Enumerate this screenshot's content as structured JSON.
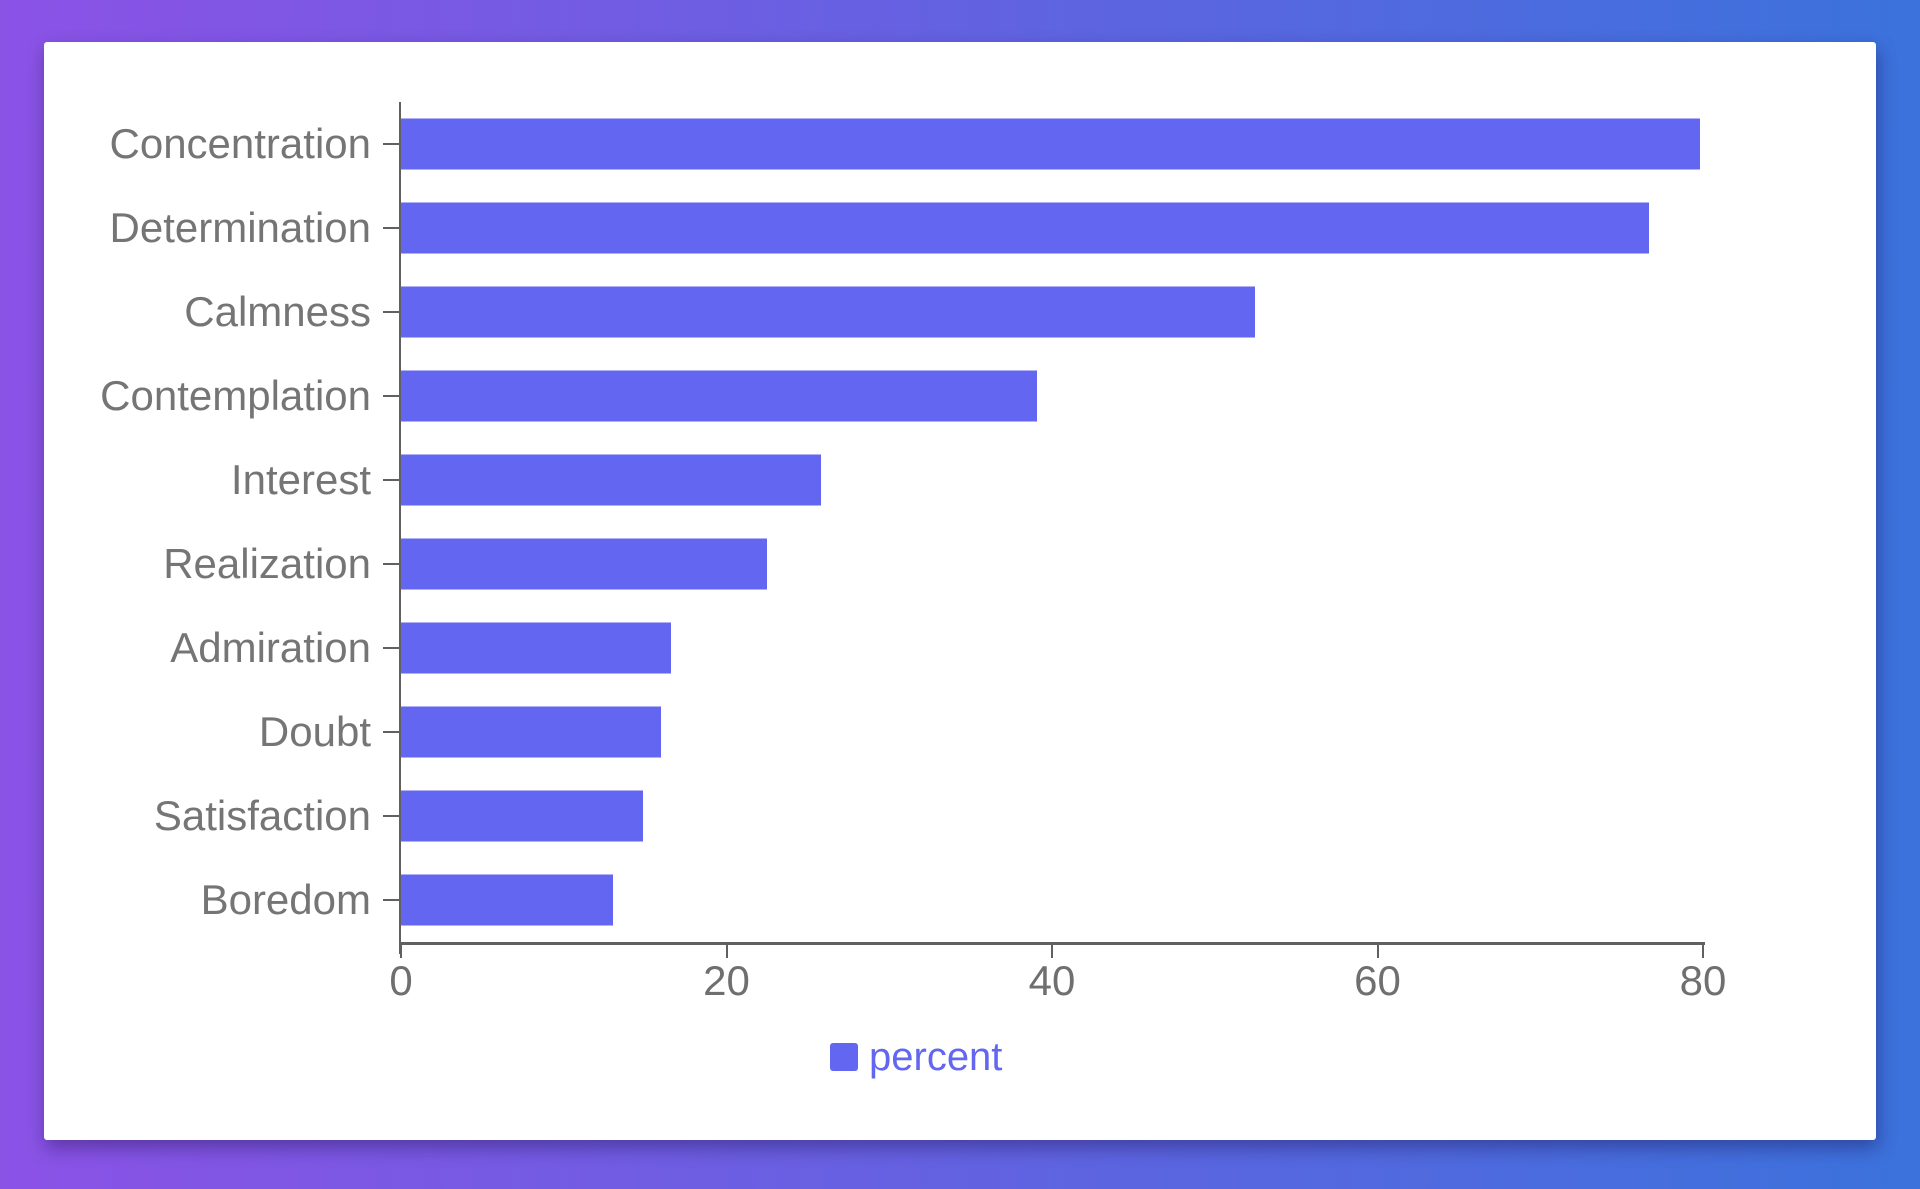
{
  "page": {
    "background_gradient_left": "#8b52e6",
    "background_gradient_right": "#3b72dc",
    "card_color": "#ffffff"
  },
  "chart_data": {
    "type": "bar",
    "orientation": "horizontal",
    "title": "",
    "categories": [
      "Concentration",
      "Determination",
      "Calmness",
      "Contemplation",
      "Interest",
      "Realization",
      "Admiration",
      "Doubt",
      "Satisfaction",
      "Boredom"
    ],
    "series": [
      {
        "name": "percent",
        "values": [
          79.8,
          76.7,
          52.5,
          39.1,
          25.8,
          22.5,
          16.6,
          16.0,
          14.9,
          13.0
        ]
      }
    ],
    "xlabel": "",
    "ylabel": "",
    "xlim": [
      0,
      80
    ],
    "xticks": [
      0,
      20,
      40,
      60,
      80
    ],
    "grid": false,
    "legend": {
      "label": "percent",
      "position": "bottom"
    },
    "colors": {
      "bar": "#6366f1",
      "category_text": "#757575",
      "tick_text": "#6f6f6f",
      "axis": "#606060",
      "legend_text": "#6366f1"
    }
  }
}
